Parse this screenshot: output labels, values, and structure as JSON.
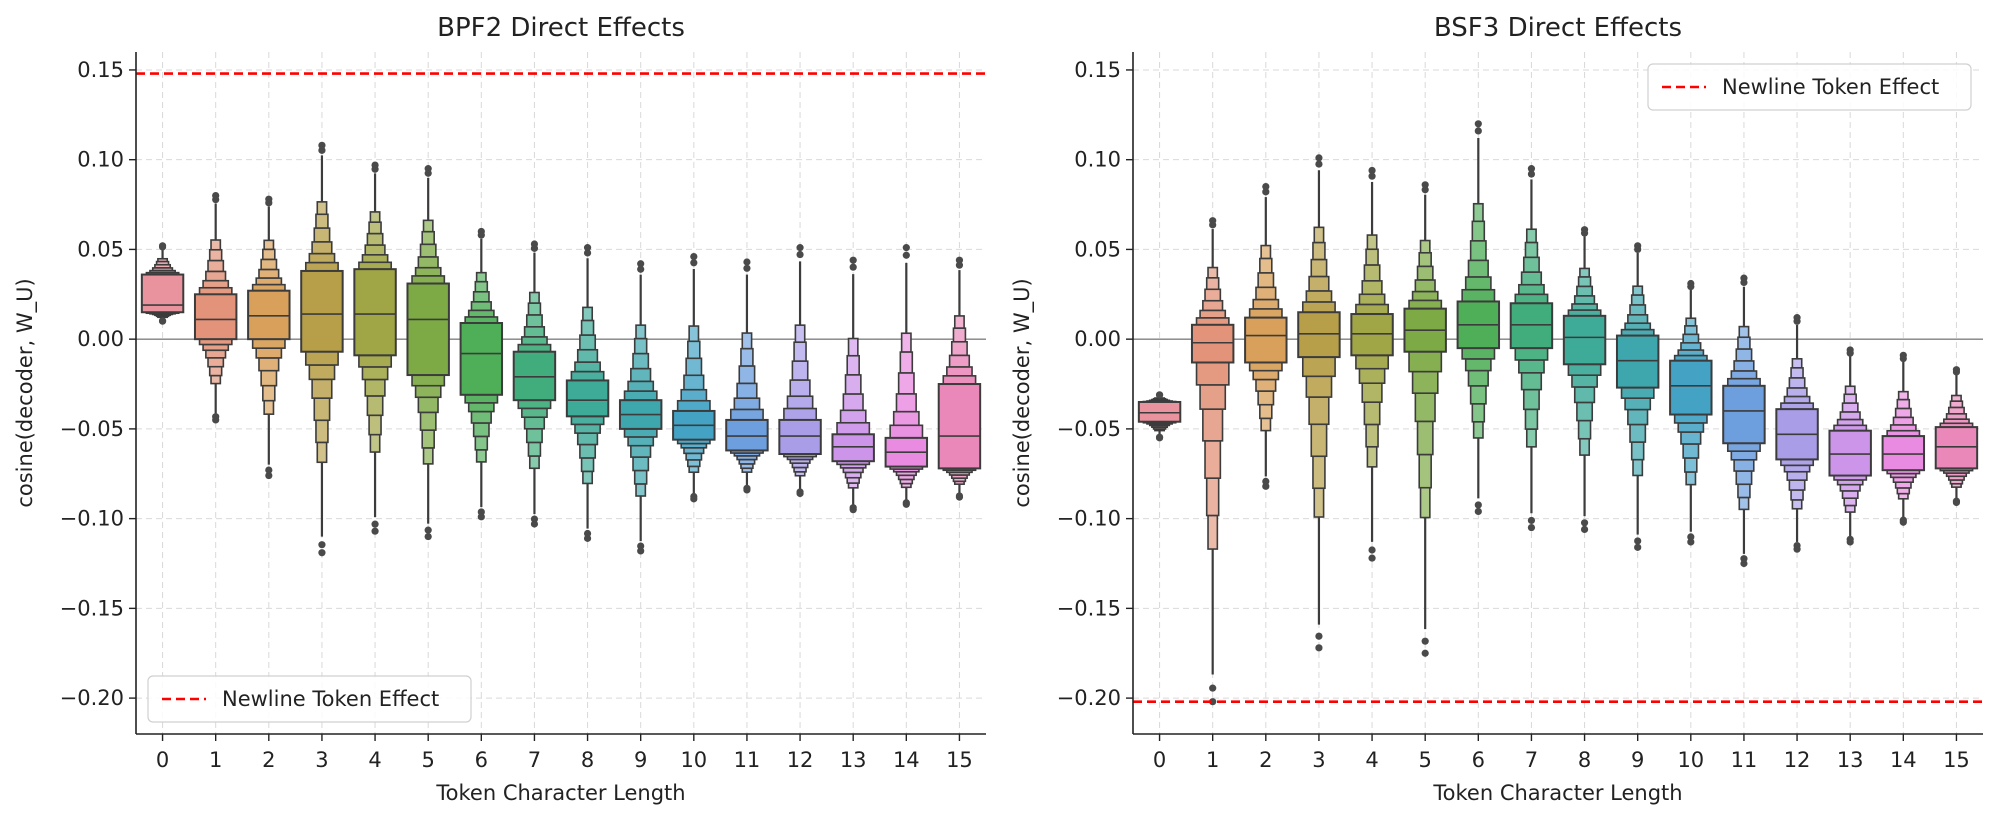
{
  "chart_data": [
    {
      "type": "boxen",
      "title": "BPF2 Direct Effects",
      "xlabel": "Token Character Length",
      "ylabel": "cosine(decoder, W_U)",
      "categories": [
        "0",
        "1",
        "2",
        "3",
        "4",
        "5",
        "6",
        "7",
        "8",
        "9",
        "10",
        "11",
        "12",
        "13",
        "14",
        "15"
      ],
      "y_ticks": [
        -0.2,
        -0.15,
        -0.1,
        -0.05,
        0.0,
        0.05,
        0.1,
        0.15
      ],
      "y_tick_labels": [
        "−0.20",
        "−0.15",
        "−0.10",
        "−0.05",
        "0.00",
        "0.05",
        "0.10",
        "0.15"
      ],
      "ylim": [
        -0.22,
        0.16
      ],
      "grid": true,
      "zero_line": 0.0,
      "reference_line": {
        "label": "Newline Token Effect",
        "value": 0.148,
        "color": "#ff0000"
      },
      "legend_position": "lower-left",
      "series": [
        {
          "category": "0",
          "median": 0.019,
          "q1": 0.015,
          "q3": 0.036,
          "min": 0.01,
          "max": 0.052,
          "color": "#e8939d"
        },
        {
          "category": "1",
          "median": 0.011,
          "q1": 0.0,
          "q3": 0.025,
          "min": -0.045,
          "max": 0.08,
          "color": "#e29379"
        },
        {
          "category": "2",
          "median": 0.013,
          "q1": 0.0,
          "q3": 0.027,
          "min": -0.076,
          "max": 0.078,
          "color": "#d8a05a"
        },
        {
          "category": "3",
          "median": 0.014,
          "q1": -0.007,
          "q3": 0.038,
          "min": -0.119,
          "max": 0.108,
          "color": "#b79f49"
        },
        {
          "category": "4",
          "median": 0.014,
          "q1": -0.009,
          "q3": 0.039,
          "min": -0.107,
          "max": 0.097,
          "color": "#a0a545"
        },
        {
          "category": "5",
          "median": 0.011,
          "q1": -0.02,
          "q3": 0.031,
          "min": -0.11,
          "max": 0.095,
          "color": "#7daa45"
        },
        {
          "category": "6",
          "median": -0.008,
          "q1": -0.031,
          "q3": 0.009,
          "min": -0.099,
          "max": 0.06,
          "color": "#4fae58"
        },
        {
          "category": "7",
          "median": -0.021,
          "q1": -0.034,
          "q3": -0.007,
          "min": -0.103,
          "max": 0.053,
          "color": "#42ad7c"
        },
        {
          "category": "8",
          "median": -0.034,
          "q1": -0.043,
          "q3": -0.023,
          "min": -0.111,
          "max": 0.051,
          "color": "#3eaa98"
        },
        {
          "category": "9",
          "median": -0.042,
          "q1": -0.05,
          "q3": -0.034,
          "min": -0.118,
          "max": 0.042,
          "color": "#3ea6ad"
        },
        {
          "category": "10",
          "median": -0.048,
          "q1": -0.056,
          "q3": -0.04,
          "min": -0.089,
          "max": 0.046,
          "color": "#44a3c4"
        },
        {
          "category": "11",
          "median": -0.054,
          "q1": -0.062,
          "q3": -0.045,
          "min": -0.084,
          "max": 0.043,
          "color": "#6d9fde"
        },
        {
          "category": "12",
          "median": -0.054,
          "q1": -0.064,
          "q3": -0.045,
          "min": -0.086,
          "max": 0.051,
          "color": "#a99de8"
        },
        {
          "category": "13",
          "median": -0.06,
          "q1": -0.068,
          "q3": -0.053,
          "min": -0.095,
          "max": 0.044,
          "color": "#cd95ea"
        },
        {
          "category": "14",
          "median": -0.063,
          "q1": -0.071,
          "q3": -0.055,
          "min": -0.092,
          "max": 0.051,
          "color": "#e98be0"
        },
        {
          "category": "15",
          "median": -0.054,
          "q1": -0.072,
          "q3": -0.025,
          "min": -0.088,
          "max": 0.044,
          "color": "#ea88b9"
        }
      ]
    },
    {
      "type": "boxen",
      "title": "BSF3 Direct Effects",
      "xlabel": "Token Character Length",
      "ylabel": "cosine(decoder, W_U)",
      "categories": [
        "0",
        "1",
        "2",
        "3",
        "4",
        "5",
        "6",
        "7",
        "8",
        "9",
        "10",
        "11",
        "12",
        "13",
        "14",
        "15"
      ],
      "y_ticks": [
        -0.2,
        -0.15,
        -0.1,
        -0.05,
        0.0,
        0.05,
        0.1,
        0.15
      ],
      "y_tick_labels": [
        "−0.20",
        "−0.15",
        "−0.10",
        "−0.05",
        "0.00",
        "0.05",
        "0.10",
        "0.15"
      ],
      "ylim": [
        -0.22,
        0.16
      ],
      "grid": true,
      "zero_line": 0.0,
      "reference_line": {
        "label": "Newline Token Effect",
        "value": -0.202,
        "color": "#ff0000"
      },
      "legend_position": "top-right",
      "series": [
        {
          "category": "0",
          "median": -0.041,
          "q1": -0.046,
          "q3": -0.035,
          "min": -0.055,
          "max": -0.031,
          "color": "#e8939d"
        },
        {
          "category": "1",
          "median": -0.002,
          "q1": -0.013,
          "q3": 0.008,
          "min": -0.202,
          "max": 0.066,
          "color": "#e29379"
        },
        {
          "category": "2",
          "median": 0.002,
          "q1": -0.013,
          "q3": 0.012,
          "min": -0.082,
          "max": 0.085,
          "color": "#d8a05a"
        },
        {
          "category": "3",
          "median": 0.003,
          "q1": -0.01,
          "q3": 0.015,
          "min": -0.172,
          "max": 0.101,
          "color": "#b79f49"
        },
        {
          "category": "4",
          "median": 0.003,
          "q1": -0.009,
          "q3": 0.014,
          "min": -0.122,
          "max": 0.094,
          "color": "#a0a545"
        },
        {
          "category": "5",
          "median": 0.005,
          "q1": -0.007,
          "q3": 0.017,
          "min": -0.175,
          "max": 0.086,
          "color": "#7daa45"
        },
        {
          "category": "6",
          "median": 0.008,
          "q1": -0.005,
          "q3": 0.021,
          "min": -0.096,
          "max": 0.12,
          "color": "#4fae58"
        },
        {
          "category": "7",
          "median": 0.008,
          "q1": -0.005,
          "q3": 0.02,
          "min": -0.105,
          "max": 0.095,
          "color": "#42ad7c"
        },
        {
          "category": "8",
          "median": 0.001,
          "q1": -0.014,
          "q3": 0.013,
          "min": -0.106,
          "max": 0.061,
          "color": "#3eaa98"
        },
        {
          "category": "9",
          "median": -0.012,
          "q1": -0.027,
          "q3": 0.002,
          "min": -0.116,
          "max": 0.052,
          "color": "#3ea6ad"
        },
        {
          "category": "10",
          "median": -0.026,
          "q1": -0.042,
          "q3": -0.012,
          "min": -0.113,
          "max": 0.031,
          "color": "#44a3c4"
        },
        {
          "category": "11",
          "median": -0.04,
          "q1": -0.058,
          "q3": -0.026,
          "min": -0.125,
          "max": 0.034,
          "color": "#6d9fde"
        },
        {
          "category": "12",
          "median": -0.053,
          "q1": -0.067,
          "q3": -0.039,
          "min": -0.117,
          "max": 0.012,
          "color": "#a99de8"
        },
        {
          "category": "13",
          "median": -0.064,
          "q1": -0.076,
          "q3": -0.051,
          "min": -0.113,
          "max": -0.006,
          "color": "#cd95ea"
        },
        {
          "category": "14",
          "median": -0.064,
          "q1": -0.073,
          "q3": -0.054,
          "min": -0.102,
          "max": -0.009,
          "color": "#e98be0"
        },
        {
          "category": "15",
          "median": -0.06,
          "q1": -0.072,
          "q3": -0.049,
          "min": -0.091,
          "max": -0.017,
          "color": "#ea88b9"
        }
      ]
    }
  ]
}
